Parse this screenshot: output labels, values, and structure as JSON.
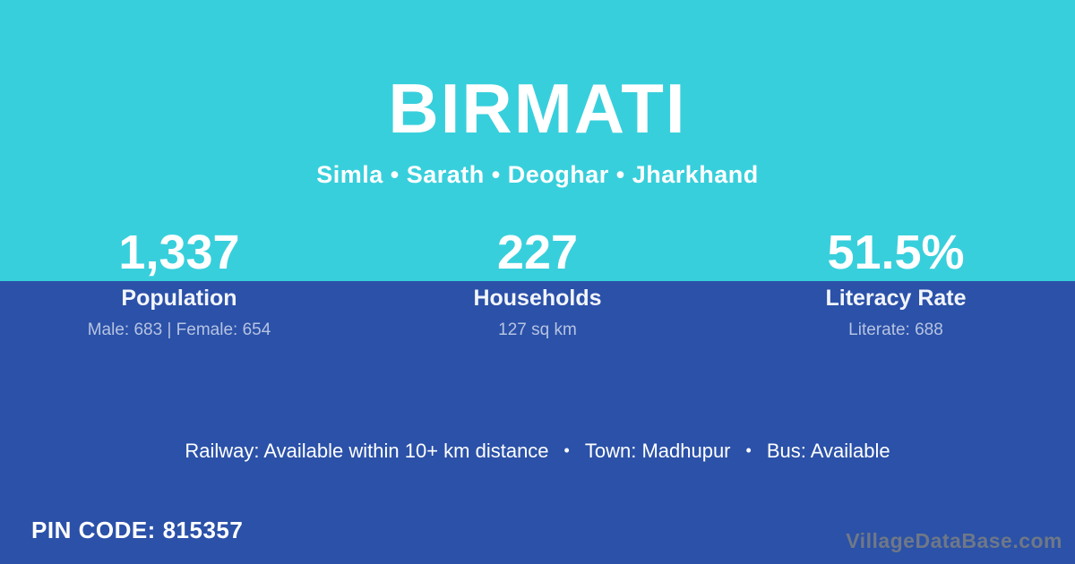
{
  "header": {
    "village_name": "BIRMATI",
    "location": "Simla • Sarath • Deoghar • Jharkhand"
  },
  "stats": [
    {
      "value": "1,337",
      "label": "Population",
      "detail": "Male: 683 | Female: 654"
    },
    {
      "value": "227",
      "label": "Households",
      "detail": "127 sq km"
    },
    {
      "value": "51.5%",
      "label": "Literacy Rate",
      "detail": "Literate: 688"
    }
  ],
  "amenities": {
    "railway": "Railway: Available within 10+ km distance",
    "town": "Town: Madhupur",
    "bus": "Bus: Available",
    "separator": "•"
  },
  "footer": {
    "pin_code": "PIN CODE: 815357",
    "watermark": "VillageDataBase.com"
  },
  "colors": {
    "top_background": "#38cfdc",
    "bottom_background": "#2b51a8",
    "primary_text": "#ffffff",
    "detail_text": "#b6c3e2",
    "watermark_text": "#6f7887"
  }
}
